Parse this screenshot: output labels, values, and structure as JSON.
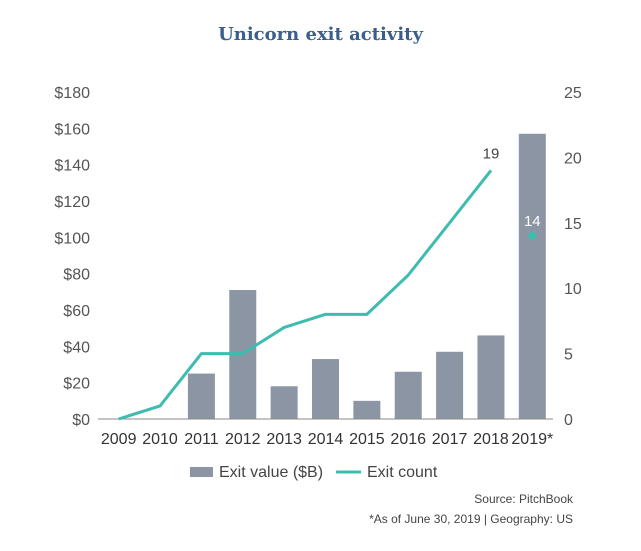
{
  "chart_data": {
    "type": "bar",
    "title": "Unicorn exit activity",
    "categories": [
      "2009",
      "2010",
      "2011",
      "2012",
      "2013",
      "2014",
      "2015",
      "2016",
      "2017",
      "2018",
      "2019*"
    ],
    "series": [
      {
        "name": "Exit value ($B)",
        "type": "bar",
        "axis": "left",
        "values": [
          0,
          0,
          25,
          71,
          18,
          33,
          10,
          26,
          37,
          46,
          157
        ]
      },
      {
        "name": "Exit count",
        "type": "line",
        "axis": "right",
        "values": [
          0,
          1,
          5,
          5,
          7,
          8,
          8,
          11,
          15,
          19,
          14
        ]
      }
    ],
    "y_left": {
      "min": 0,
      "max": 180,
      "ticks": [
        "$0",
        "$20",
        "$40",
        "$60",
        "$80",
        "$100",
        "$120",
        "$140",
        "$160",
        "$180"
      ]
    },
    "y_right": {
      "min": 0,
      "max": 25,
      "ticks": [
        "0",
        "5",
        "10",
        "15",
        "20",
        "25"
      ]
    },
    "data_labels": [
      {
        "category": "2018",
        "series": "Exit count",
        "text": "19"
      },
      {
        "category": "2019*",
        "series": "Exit count",
        "text": "14"
      }
    ],
    "legend": [
      "Exit value ($B)",
      "Exit count"
    ],
    "legend_position": "bottom",
    "colors": {
      "bar": "#8b95a3",
      "line": "#3dbcaf",
      "title": "#3b5f8a"
    }
  },
  "source": "Source: PitchBook",
  "footnote": "*As of June 30, 2019 | Geography: US"
}
